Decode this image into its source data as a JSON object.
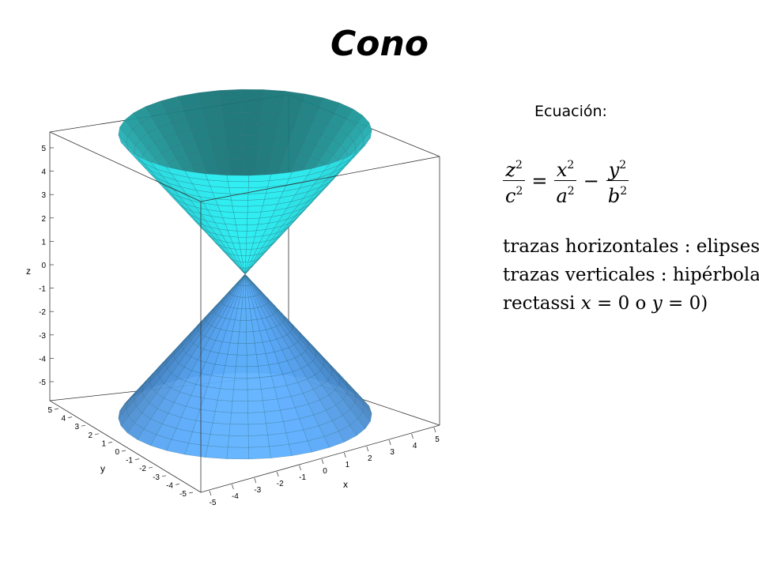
{
  "title": "Cono",
  "equation_label": "Ecuación:",
  "formula": {
    "lhs_num": "z",
    "lhs_den": "c",
    "eq": "=",
    "t1_num": "x",
    "t1_den": "a",
    "minus": "−",
    "t2_num": "y",
    "t2_den": "b",
    "exp": "2"
  },
  "description": {
    "line1": "trazas horizontales : elipses",
    "line2": "trazas verticales : hipérbolas (o",
    "line3_a": "rectassi ",
    "line3_x": "x",
    "line3_b": " = 0 o ",
    "line3_y": "y",
    "line3_c": " = 0)"
  },
  "plot": {
    "z_label": "z",
    "x_label": "x",
    "y_label": "y",
    "z_ticks": [
      "5",
      "4",
      "3",
      "2",
      "1",
      "0",
      "-1",
      "-2",
      "-3",
      "-4",
      "-5"
    ],
    "x_ticks": [
      "-5",
      "-4",
      "-3",
      "-2",
      "-1",
      "0",
      "1",
      "2",
      "3",
      "4",
      "5"
    ],
    "y_ticks": [
      "5",
      "4",
      "3",
      "2",
      "1",
      "0",
      "-1",
      "-2",
      "-3",
      "-4",
      "-5"
    ],
    "upper_color": "#2ee6ea",
    "lower_color": "#5aa8f8",
    "mesh_color": "#2a6b7a"
  }
}
